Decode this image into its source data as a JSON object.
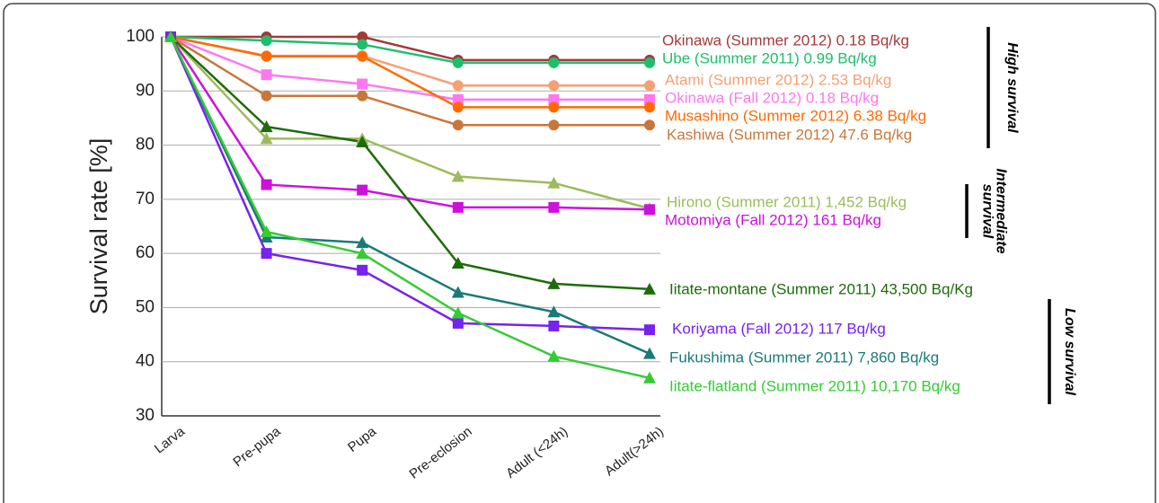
{
  "chart_data": {
    "type": "line",
    "y_label": "Survival rate [%]",
    "categories": [
      "Larva",
      "Pre-pupa",
      "Pupa",
      "Pre-eclosion",
      "Adult (<24h)",
      "Adult(>24h)"
    ],
    "ylim": [
      30,
      100
    ],
    "yticks": [
      30,
      40,
      50,
      60,
      70,
      80,
      90,
      100
    ],
    "grid": true,
    "series": [
      {
        "name": "Okinawa (Summer 2012) 0.18 Bq/kg",
        "color": "#a33a3a",
        "marker": "circle",
        "values": [
          100,
          100,
          100,
          95.7,
          95.7,
          95.7
        ]
      },
      {
        "name": "Ube (Summer 2011)  0.99 Bq/kg",
        "color": "#1dbf6b",
        "marker": "circle",
        "values": [
          100,
          99.3,
          98.6,
          95.2,
          95.2,
          95.2
        ]
      },
      {
        "name": "Atami (Summer 2012) 2.53 Bq/kg",
        "color": "#f5a072",
        "marker": "circle",
        "values": [
          100,
          96.5,
          96.5,
          91,
          91,
          91
        ]
      },
      {
        "name": "Okinawa (Fall 2012) 0.18 Bq/kg",
        "color": "#ff77ee",
        "marker": "square",
        "values": [
          100,
          93,
          91.3,
          88.4,
          88.4,
          88.4
        ]
      },
      {
        "name": "Musashino (Summer 2012) 6.38 Bq/kg",
        "color": "#ff6a00",
        "marker": "circle",
        "values": [
          100,
          96.4,
          96.4,
          87,
          87,
          87
        ]
      },
      {
        "name": "Kashiwa (Summer 2012) 47.6 Bq/kg",
        "color": "#c8773a",
        "marker": "circle",
        "values": [
          100,
          89.1,
          89.1,
          83.7,
          83.7,
          83.7
        ]
      },
      {
        "name": "Hirono (Summer 2011) 1,452 Bq/kg",
        "color": "#9dbb5c",
        "marker": "triangle",
        "values": [
          100,
          81.2,
          81.2,
          74.2,
          73,
          68.3
        ]
      },
      {
        "name": "Motomiya (Fall 2012) 161 Bq/kg",
        "color": "#cc11dd",
        "marker": "square",
        "values": [
          100,
          72.7,
          71.7,
          68.5,
          68.5,
          68.1
        ]
      },
      {
        "name": "Iitate-montane (Summer 2011) 43,500  Bq/Kg",
        "color": "#1e6b0a",
        "marker": "triangle",
        "values": [
          100,
          83.4,
          80.6,
          58.2,
          54.4,
          53.4
        ]
      },
      {
        "name": "Koriyama (Fall 2012) 117 Bq/kg",
        "color": "#7722ee",
        "marker": "square",
        "values": [
          100,
          60,
          56.9,
          47.1,
          46.6,
          45.9
        ]
      },
      {
        "name": "Fukushima (Summer 2011) 7,860 Bq/kg",
        "color": "#1a7a7a",
        "marker": "triangle",
        "values": [
          100,
          63,
          62,
          52.8,
          49.2,
          41.5
        ]
      },
      {
        "name": "Iitate-flatland (Summer 2011) 10,170 Bq/kg",
        "color": "#33cc33",
        "marker": "triangle",
        "values": [
          100,
          64,
          60,
          49,
          41,
          37
        ]
      }
    ],
    "groups": [
      [
        "High survival"
      ],
      [
        "Intermediate",
        "survival"
      ],
      [
        "Low survival"
      ]
    ]
  }
}
